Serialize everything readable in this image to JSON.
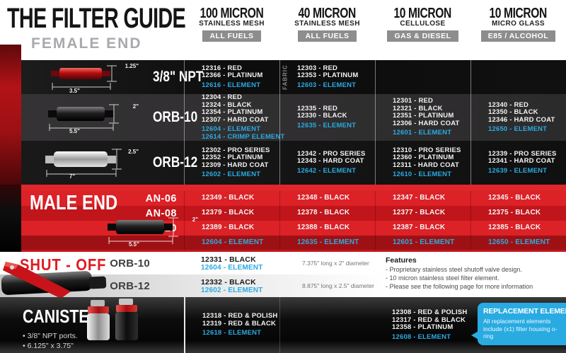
{
  "title": "THE FILTER GUIDE",
  "subtitle": "FEMALE END",
  "colors": {
    "accent_blue": "#29abe2",
    "brand_red": "#d1181f"
  },
  "columns": [
    {
      "micron": "100 MICRON",
      "type": "STAINLESS MESH",
      "badge": "ALL FUELS"
    },
    {
      "micron": "40 MICRON",
      "type": "STAINLESS MESH",
      "badge": "ALL FUELS"
    },
    {
      "micron": "10 MICRON",
      "type": "CELLULOSE",
      "badge": "GAS & DIESEL"
    },
    {
      "micron": "10 MICRON",
      "type": "MICRO GLASS",
      "badge": "E85 / ALCOHOL"
    }
  ],
  "female_rows": [
    {
      "name": "3/8\" NPT",
      "dims": {
        "height": "1.25\"",
        "length": "3.5\""
      },
      "fabric_note": "FABRIC",
      "cells": [
        {
          "parts": [
            "12316 - RED",
            "12366 - PLATINUM"
          ],
          "elements": [
            "12616 - ELEMENT"
          ]
        },
        {
          "parts": [
            "12303 - RED",
            "12353 - PLATINUM"
          ],
          "elements": [
            "12603 - ELEMENT"
          ]
        },
        {
          "parts": [],
          "elements": []
        },
        {
          "parts": [],
          "elements": []
        }
      ]
    },
    {
      "name": "ORB-10",
      "dims": {
        "height": "2\"",
        "length": "5.5\""
      },
      "cells": [
        {
          "parts": [
            "12304 - RED",
            "12324 - BLACK",
            "12354 - PLATINUM",
            "12307 - HARD COAT"
          ],
          "elements": [
            "12604 - ELEMENT",
            "12614 - CRIMP ELEMENT"
          ]
        },
        {
          "parts": [
            "12335 - RED",
            "12330 - BLACK"
          ],
          "elements": [
            "12635 - ELEMENT"
          ]
        },
        {
          "parts": [
            "12301 - RED",
            "12321 - BLACK",
            "12351 - PLATINUM",
            "12306 - HARD COAT"
          ],
          "elements": [
            "12601 - ELEMENT"
          ]
        },
        {
          "parts": [
            "12340 - RED",
            "12350 - BLACK",
            "12346 - HARD COAT"
          ],
          "elements": [
            "12650 - ELEMENT"
          ]
        }
      ]
    },
    {
      "name": "ORB-12",
      "dims": {
        "height": "2.5\"",
        "length": "7\""
      },
      "cells": [
        {
          "parts": [
            "12302 - PRO SERIES",
            "12352 - PLATINUM",
            "12309 - HARD COAT"
          ],
          "elements": [
            "12602 - ELEMENT"
          ]
        },
        {
          "parts": [
            "12342 - PRO SERIES",
            "12343 - HARD COAT"
          ],
          "elements": [
            "12642 - ELEMENT"
          ]
        },
        {
          "parts": [
            "12310 - PRO SERIES",
            "12360 - PLATINUM",
            "12311 - HARD COAT"
          ],
          "elements": [
            "12610 - ELEMENT"
          ]
        },
        {
          "parts": [
            "12339 - PRO SERIES",
            "12341 - HARD COAT"
          ],
          "elements": [
            "12639 - ELEMENT"
          ]
        }
      ]
    }
  ],
  "male_end": {
    "label": "MALE END",
    "dims": {
      "height": "2\"",
      "length": "5.5\""
    },
    "rows": [
      {
        "an": "AN-06",
        "parts": [
          "12349 - BLACK",
          "12348 - BLACK",
          "12347 - BLACK",
          "12345 - BLACK"
        ]
      },
      {
        "an": "AN-08",
        "parts": [
          "12379 - BLACK",
          "12378 - BLACK",
          "12377 - BLACK",
          "12375 - BLACK"
        ]
      },
      {
        "an": "AN-10",
        "parts": [
          "12389 - BLACK",
          "12388 - BLACK",
          "12387 - BLACK",
          "12385 - BLACK"
        ]
      }
    ],
    "element_row": [
      "12604 - ELEMENT",
      "12635 - ELEMENT",
      "12601 - ELEMENT",
      "12650 - ELEMENT"
    ]
  },
  "shut_off": {
    "label": "SHUT - OFF",
    "rows": [
      {
        "name": "ORB-10",
        "part": "12331 - BLACK",
        "element": "12604 - ELEMENT",
        "size": "7.375\" long x 2\" diameter"
      },
      {
        "name": "ORB-12",
        "part": "12332 - BLACK",
        "element": "12602 - ELEMENT",
        "size": "8.875\" long x 2.5\" diameter"
      }
    ],
    "features_title": "Features",
    "features": [
      "- Proprietary stainless steel shutoff valve design.",
      "- 10 micron stainless steel filter element.",
      "- Please see the following page for more information"
    ]
  },
  "canister": {
    "label": "CANISTER",
    "bullets": [
      "• 3/8\" NPT ports.",
      "• 6.125\" x 3.75\""
    ],
    "cells": [
      {
        "parts": [
          "12318 - RED & POLISH",
          "12319 - RED & BLACK"
        ],
        "elements": [
          "12618 - ELEMENT"
        ]
      },
      {
        "parts": [],
        "elements": []
      },
      {
        "parts": [
          "12308 - RED & POLISH",
          "12317 - RED & BLACK",
          "12358 - PLATINUM"
        ],
        "elements": [
          "12608 - ELEMENT"
        ]
      }
    ],
    "callout": {
      "title": "REPLACEMENT ELEMENTS",
      "body": "All replacement elements include (x1) filter housing o-ring"
    }
  }
}
